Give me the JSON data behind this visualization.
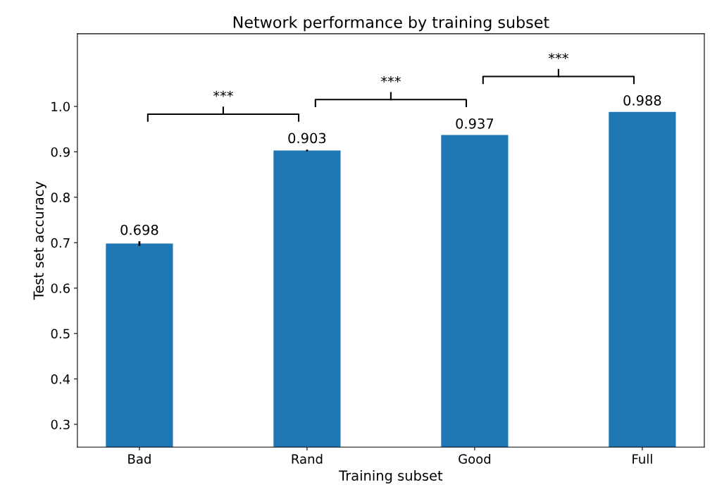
{
  "chart_data": {
    "type": "bar",
    "title": "Network performance by training subset",
    "xlabel": "Training subset",
    "ylabel": "Test set accuracy",
    "categories": [
      "Bad",
      "Rand",
      "Good",
      "Full"
    ],
    "values": [
      0.698,
      0.903,
      0.937,
      0.988
    ],
    "errors": [
      0.005,
      0.002,
      null,
      null
    ],
    "color": "#1f77b4",
    "data_labels": true,
    "ylim": [
      0.25,
      1.16
    ],
    "yticks": [
      0.3,
      0.4,
      0.5,
      0.6,
      0.7,
      0.8,
      0.9,
      {
        "value": 1.0,
        "label": "1.0"
      }
    ],
    "annotations": [
      "***",
      "***",
      "***"
    ],
    "grid": false,
    "legend": false
  }
}
